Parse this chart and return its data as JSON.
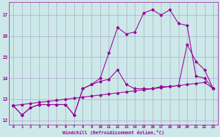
{
  "xlabel": "Windchill (Refroidissement éolien,°C)",
  "x_ticks": [
    0,
    1,
    2,
    3,
    4,
    5,
    6,
    7,
    8,
    9,
    10,
    11,
    12,
    13,
    14,
    15,
    16,
    17,
    18,
    19,
    20,
    21,
    22,
    23
  ],
  "yticks": [
    12,
    13,
    14,
    15,
    16,
    17
  ],
  "ylim": [
    11.8,
    17.6
  ],
  "xlim": [
    -0.5,
    23.5
  ],
  "bg_color": "#cce8e8",
  "line_color": "#990099",
  "grid_color": "#aaaacc",
  "line1_x": [
    0,
    1,
    2,
    3,
    4,
    5,
    6,
    7,
    8,
    9,
    10,
    11,
    12,
    13,
    14,
    15,
    16,
    17,
    18,
    19,
    20,
    21,
    22,
    23
  ],
  "line1_y": [
    12.7,
    12.25,
    12.6,
    12.75,
    12.75,
    12.75,
    12.75,
    12.25,
    13.5,
    13.7,
    14.0,
    15.2,
    16.4,
    16.1,
    16.2,
    17.1,
    17.25,
    17.0,
    17.25,
    16.6,
    16.5,
    14.1,
    14.0,
    13.5
  ],
  "line2_x": [
    0,
    1,
    2,
    3,
    4,
    5,
    6,
    7,
    8,
    9,
    10,
    11,
    12,
    13,
    14,
    15,
    16,
    17,
    18,
    19,
    20,
    21,
    22,
    23
  ],
  "line2_y": [
    12.7,
    12.25,
    12.6,
    12.75,
    12.75,
    12.75,
    12.75,
    12.25,
    13.5,
    13.7,
    13.85,
    13.95,
    14.4,
    13.7,
    13.5,
    13.5,
    13.5,
    13.6,
    13.6,
    13.65,
    15.6,
    14.8,
    14.4,
    13.5
  ],
  "line3_x": [
    0,
    1,
    2,
    3,
    4,
    5,
    6,
    7,
    8,
    9,
    10,
    11,
    12,
    13,
    14,
    15,
    16,
    17,
    18,
    19,
    20,
    21,
    22,
    23
  ],
  "line3_y": [
    12.7,
    12.75,
    12.8,
    12.85,
    12.9,
    12.95,
    13.0,
    13.05,
    13.1,
    13.15,
    13.2,
    13.25,
    13.3,
    13.35,
    13.4,
    13.45,
    13.5,
    13.55,
    13.6,
    13.65,
    13.7,
    13.75,
    13.8,
    13.5
  ]
}
